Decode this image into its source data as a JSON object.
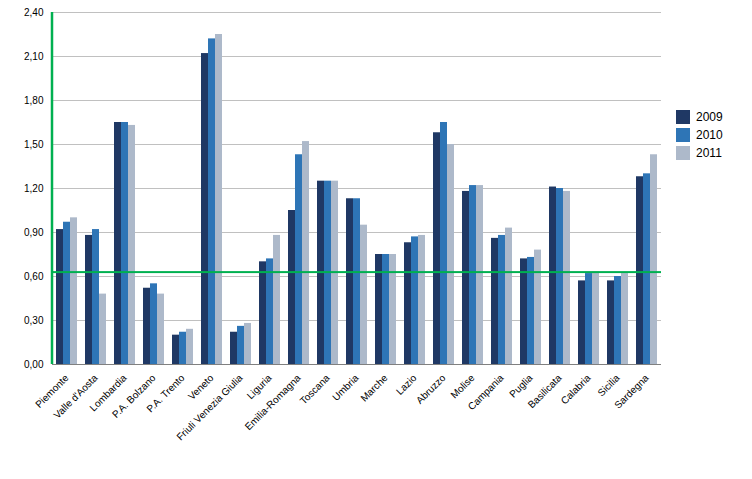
{
  "chart_data": {
    "type": "bar",
    "categories": [
      "Piemonte",
      "Valle d'Aosta",
      "Lombardia",
      "P.A. Bolzano",
      "P.A. Trento",
      "Veneto",
      "Friuli Venezia Giulia",
      "Liguria",
      "Emilia-Romagna",
      "Toscana",
      "Umbria",
      "Marche",
      "Lazio",
      "Abruzzo",
      "Molise",
      "Campania",
      "Puglia",
      "Basilicata",
      "Calabria",
      "Sicilia",
      "Sardegna"
    ],
    "series": [
      {
        "name": "2009",
        "color": "#1F3864",
        "values": [
          0.92,
          0.88,
          1.65,
          0.52,
          0.2,
          2.12,
          0.22,
          0.7,
          1.05,
          1.25,
          1.13,
          0.75,
          0.83,
          1.58,
          1.18,
          0.86,
          0.72,
          1.21,
          0.57,
          0.57,
          1.28
        ]
      },
      {
        "name": "2010",
        "color": "#2E75B6",
        "values": [
          0.97,
          0.92,
          1.65,
          0.55,
          0.22,
          2.22,
          0.26,
          0.72,
          1.43,
          1.25,
          1.13,
          0.75,
          0.87,
          1.65,
          1.22,
          0.88,
          0.73,
          1.2,
          0.62,
          0.6,
          1.3
        ]
      },
      {
        "name": "2011",
        "color": "#ADB9CA",
        "values": [
          1.0,
          0.48,
          1.63,
          0.48,
          0.24,
          2.25,
          0.28,
          0.88,
          1.52,
          1.25,
          0.95,
          0.75,
          0.88,
          1.5,
          1.22,
          0.93,
          0.78,
          1.18,
          0.63,
          0.62,
          1.43
        ]
      }
    ],
    "hline": {
      "value": 0.63,
      "color": "#00B050"
    },
    "vline": {
      "color": "#00B050"
    },
    "ylim": [
      0.0,
      2.4
    ],
    "yticks": [
      {
        "value": 0.0,
        "label": "0,00"
      },
      {
        "value": 0.3,
        "label": "0,30"
      },
      {
        "value": 0.6,
        "label": "0,60"
      },
      {
        "value": 0.9,
        "label": "0,90"
      },
      {
        "value": 1.2,
        "label": "1,20"
      },
      {
        "value": 1.5,
        "label": "1,50"
      },
      {
        "value": 1.8,
        "label": "1,80"
      },
      {
        "value": 2.1,
        "label": "2,10"
      },
      {
        "value": 2.4,
        "label": "2,40"
      }
    ],
    "grid": true,
    "legend": "right"
  }
}
